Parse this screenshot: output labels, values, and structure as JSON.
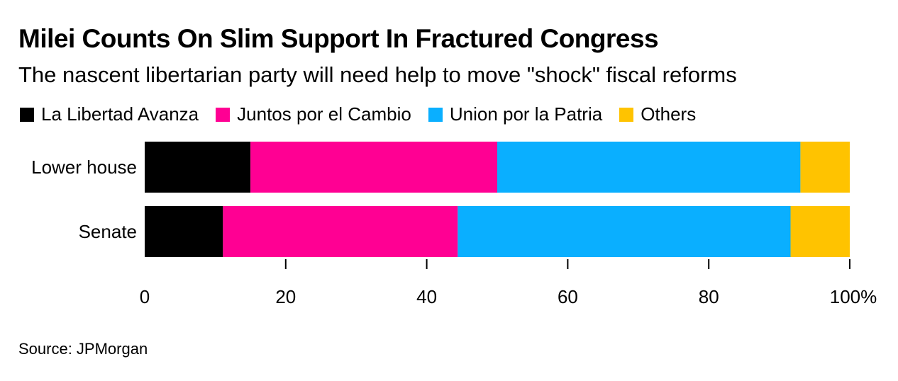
{
  "title": "Milei Counts On Slim Support In Fractured Congress",
  "subtitle": "The nascent libertarian party will need help to move \"shock\" fiscal reforms",
  "source": "Source: JPMorgan",
  "colors": {
    "la_libertad_avanza": "#000000",
    "juntos_por_el_cambio": "#ff0093",
    "union_por_la_patria": "#0aafff",
    "others": "#ffc300"
  },
  "chart_data": {
    "type": "bar",
    "orientation": "horizontal",
    "stacked": true,
    "title": "Milei Counts On Slim Support In Fractured Congress",
    "subtitle": "The nascent libertarian party will need help to move \"shock\" fiscal reforms",
    "categories": [
      "Lower house",
      "Senate"
    ],
    "series": [
      {
        "name": "La Libertad Avanza",
        "color": "#000000",
        "values": [
          15.0,
          11.1
        ]
      },
      {
        "name": "Juntos por el Cambio",
        "color": "#ff0093",
        "values": [
          35.0,
          33.3
        ]
      },
      {
        "name": "Union por la Patria",
        "color": "#0aafff",
        "values": [
          43.0,
          47.2
        ]
      },
      {
        "name": "Others",
        "color": "#ffc300",
        "values": [
          7.0,
          8.4
        ]
      }
    ],
    "xlim": [
      0,
      100
    ],
    "x_ticks": [
      0,
      20,
      40,
      60,
      80,
      100
    ],
    "x_tick_labels": [
      "0",
      "20",
      "40",
      "60",
      "80",
      "100%"
    ],
    "xlabel": "",
    "ylabel": "",
    "grid": false,
    "legend_position": "top-left"
  }
}
